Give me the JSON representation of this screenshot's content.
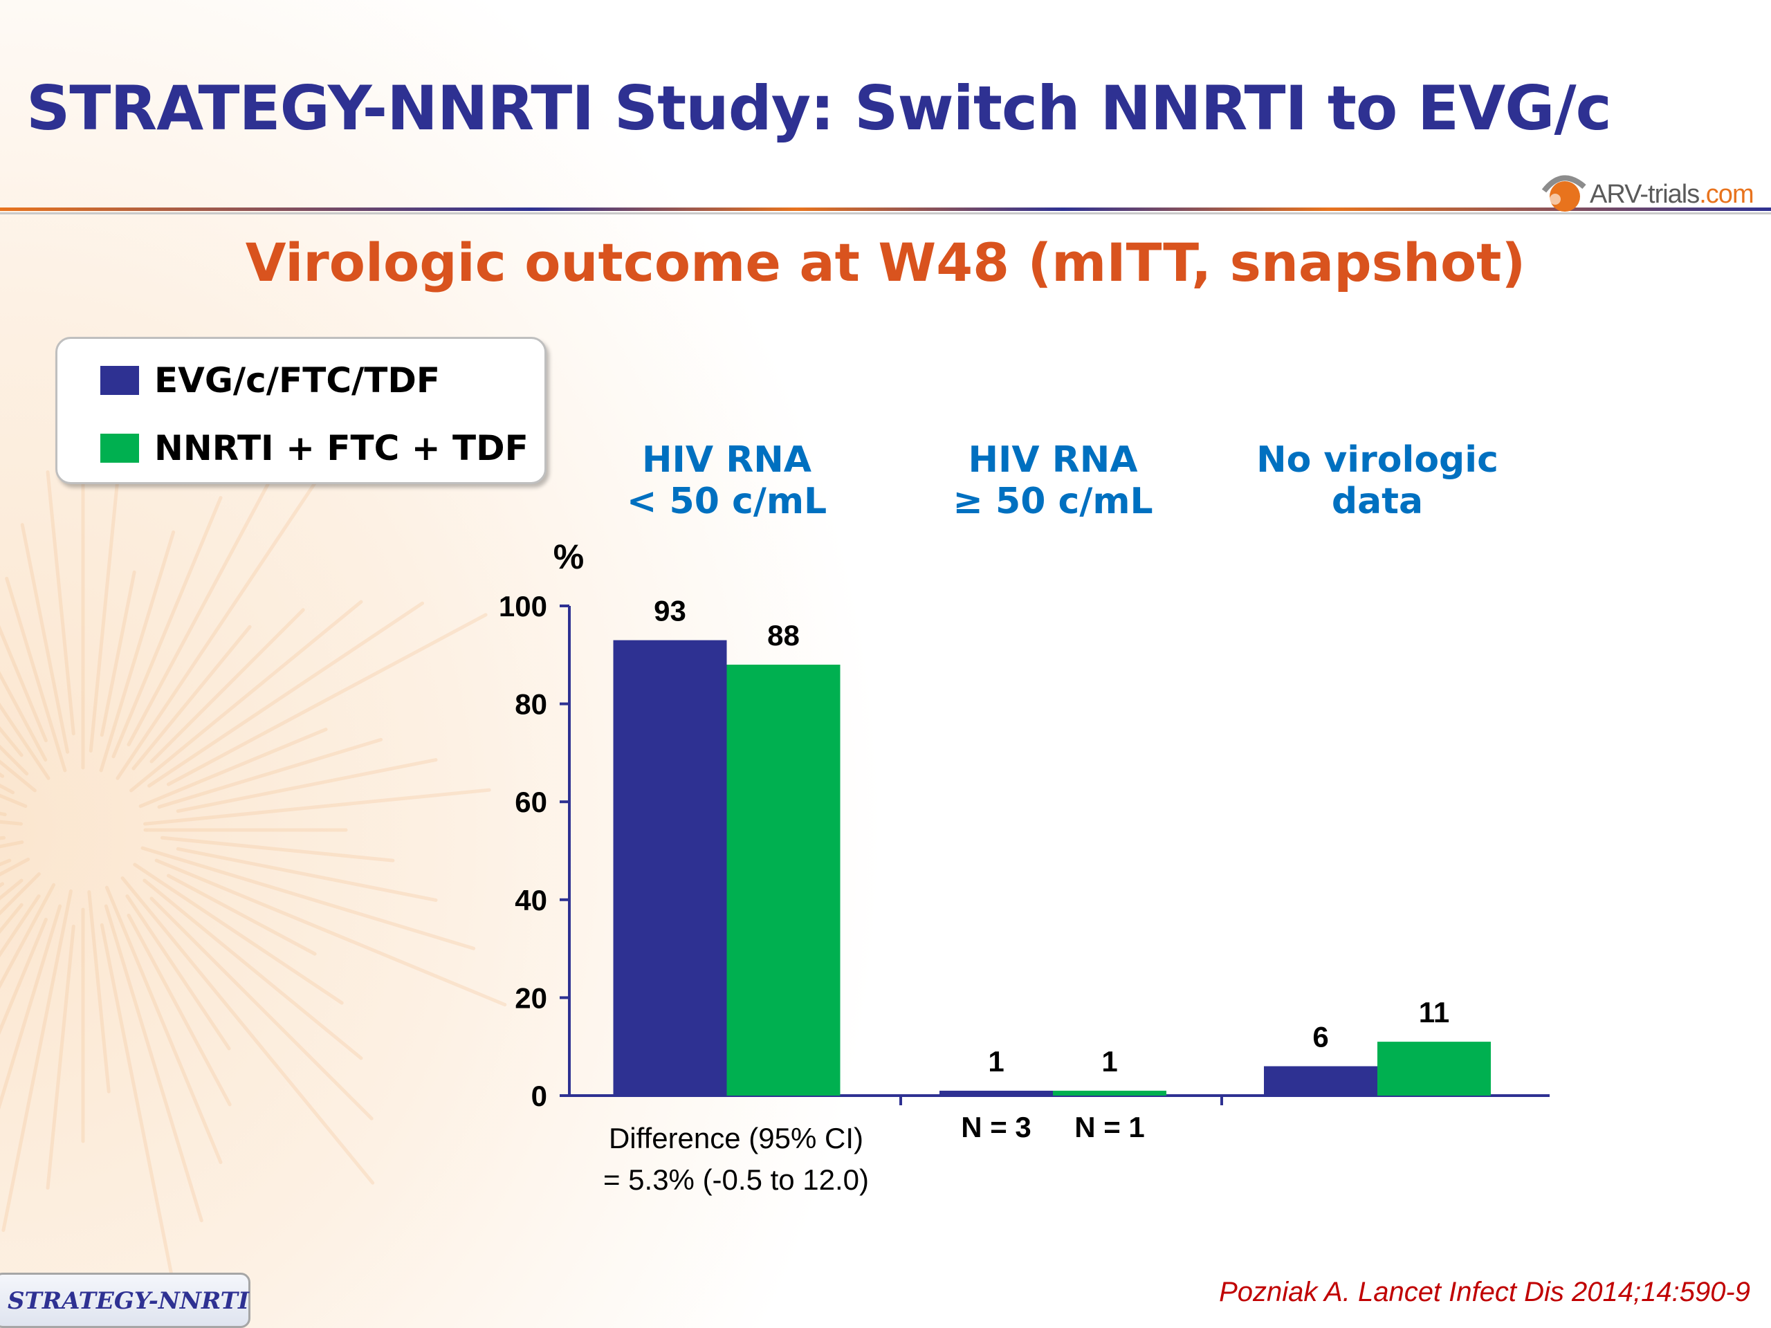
{
  "slide": {
    "title": "STRATEGY-NNRTI Study: Switch NNRTI to EVG/c",
    "subtitle": "Virologic outcome at W48 (mITT, snapshot)",
    "logo_text_main": "ARV-trials",
    "logo_text_suffix": ".com",
    "footer_label": "STRATEGY-NNRTI",
    "citation": "Pozniak A. Lancet Infect Dis 2014;14:590-9"
  },
  "legend": {
    "items": [
      {
        "label": "EVG/c/FTC/TDF",
        "color": "#2e3192"
      },
      {
        "label": "NNRTI + FTC + TDF",
        "color": "#00b050"
      }
    ]
  },
  "colors": {
    "title": "#2e3192",
    "subtitle": "#d9531e",
    "category_header": "#0070c0",
    "axis": "#2e3192",
    "citation": "#c00000"
  },
  "chart_data": {
    "type": "bar",
    "categories": [
      "HIV RNA\n< 50 c/mL",
      "HIV RNA\n≥ 50 c/mL",
      "No virologic\ndata"
    ],
    "series": [
      {
        "name": "EVG/c/FTC/TDF",
        "values": [
          93,
          1,
          6
        ],
        "labels": [
          "93",
          "1",
          "6"
        ]
      },
      {
        "name": "NNRTI + FTC + TDF",
        "values": [
          88,
          1,
          11
        ],
        "labels": [
          "88",
          "1",
          "11"
        ]
      }
    ],
    "ylabel": "%",
    "ylim": [
      0,
      100
    ],
    "yticks": [
      0,
      20,
      40,
      60,
      80,
      100
    ],
    "grid": false,
    "legend_position": "top-left",
    "annotations": {
      "difference": [
        "Difference (95% CI)",
        "= 5.3% (-0.5 to 12.0)"
      ],
      "n_labels": [
        "N = 3",
        "N = 1"
      ]
    }
  }
}
